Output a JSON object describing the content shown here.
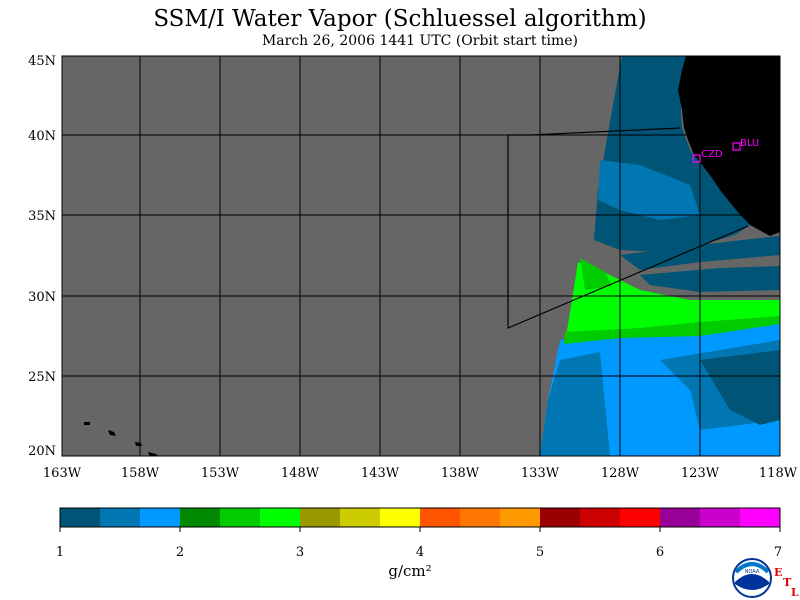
{
  "title": "SSM/I Water Vapor (Schluessel algorithm)",
  "subtitle": "March 26, 2006  1441 UTC  (Orbit start time)",
  "map": {
    "lon_labels": [
      "163W",
      "158W",
      "153W",
      "148W",
      "143W",
      "138W",
      "133W",
      "128W",
      "123W",
      "118W"
    ],
    "lat_labels": [
      "45N",
      "40N",
      "35N",
      "30N",
      "25N",
      "20N"
    ],
    "stations": [
      {
        "id": "CZD"
      },
      {
        "id": "BLU"
      }
    ],
    "colors": {
      "no_data": "#666666",
      "land": "#000000",
      "grid": "#000000"
    }
  },
  "colorbar": {
    "colors": [
      "#005577",
      "#0077b3",
      "#0099ff",
      "#008800",
      "#00cc00",
      "#00ff00",
      "#999900",
      "#cccc00",
      "#ffff00",
      "#ff5500",
      "#ff7700",
      "#ff9900",
      "#990000",
      "#cc0000",
      "#ff0000",
      "#990099",
      "#cc00cc",
      "#ff00ff"
    ],
    "tick_labels": [
      "1",
      "2",
      "3",
      "4",
      "5",
      "6",
      "7"
    ],
    "units": "g/cm²"
  },
  "logo": {
    "text": "NOAA",
    "side_letters": [
      "E",
      "T",
      "L"
    ]
  }
}
